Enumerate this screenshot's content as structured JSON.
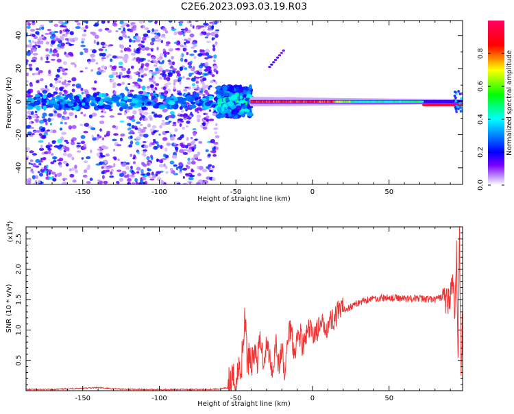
{
  "title": "C2E6.2023.093.03.19.R03",
  "chart_data": [
    {
      "type": "heatmap",
      "xlabel": "Height of straight line (km)",
      "ylabel": "Frequency (Hz)",
      "xlim": [
        -187,
        98
      ],
      "ylim": [
        -50,
        49
      ],
      "xticks": [
        -150,
        -100,
        -50,
        0,
        50
      ],
      "yticks": [
        -40,
        -20,
        0,
        20,
        40
      ],
      "colorbar": {
        "label": "Normalized spectral amplitude",
        "range": [
          0,
          1
        ],
        "ticks": [
          "0.0",
          "0.2",
          "0.4",
          "0.6",
          "0.8"
        ],
        "colors": [
          "#ffffff",
          "#7a00ff",
          "#0000ff",
          "#00ffff",
          "#00ff00",
          "#ffff00",
          "#ff0000",
          "#ff0060"
        ]
      },
      "description_regions": [
        {
          "x_range": [
            -187,
            -62
          ],
          "pattern": "broadband scatter",
          "peak_amplitude": 0.45
        },
        {
          "x_range": [
            -62,
            -40
          ],
          "pattern": "strong band around 0 Hz",
          "peak_amplitude": 0.45
        },
        {
          "x_range": [
            -40,
            98
          ],
          "pattern": "narrow line at ~0 Hz",
          "peak_amplitude": 0.95
        }
      ]
    },
    {
      "type": "line",
      "xlabel": "Height of straight line (km)",
      "ylabel": "SNR (10 * v/v)",
      "yscale_label": "(x10",
      "yscale_exp": "4",
      "yscale_close": ")",
      "xlim": [
        -187,
        98
      ],
      "ylim": [
        0,
        2.7
      ],
      "xticks": [
        -150,
        -100,
        -50,
        0,
        50
      ],
      "yticks": [
        0.5,
        1.0,
        1.5,
        2.0,
        2.5
      ],
      "color": "#ee3333",
      "series": [
        {
          "x": [
            -187,
            -170,
            -150,
            -140,
            -130,
            -110,
            -90,
            -70,
            -60,
            -55,
            -52,
            -50,
            -48,
            -46,
            -45,
            -44,
            -43,
            -42,
            -41,
            -40,
            -38,
            -36,
            -34,
            -32,
            -30,
            -28,
            -26,
            -24,
            -22,
            -20,
            -18,
            -16,
            -14,
            -12,
            -10,
            -8,
            -6,
            -4,
            -2,
            0,
            3,
            6,
            10,
            14,
            18,
            22,
            26,
            30,
            35,
            40,
            50,
            60,
            70,
            80,
            85,
            88,
            90,
            92,
            93,
            94,
            95,
            96,
            97,
            98
          ],
          "values": [
            0.02,
            0.02,
            0.04,
            0.05,
            0.03,
            0.02,
            0.02,
            0.02,
            0.03,
            0.05,
            0.1,
            0.18,
            0.35,
            0.5,
            0.8,
            1.35,
            0.6,
            0.55,
            0.7,
            0.45,
            0.65,
            0.5,
            0.85,
            0.5,
            0.75,
            0.6,
            0.3,
            0.85,
            0.4,
            0.7,
            0.2,
            0.95,
            1.05,
            0.65,
            0.85,
            0.95,
            0.7,
            0.9,
            1.0,
            0.95,
            1.0,
            1.05,
            1.1,
            1.2,
            1.3,
            1.35,
            1.4,
            1.45,
            1.5,
            1.52,
            1.53,
            1.52,
            1.52,
            1.5,
            1.55,
            1.45,
            1.6,
            1.75,
            1.2,
            2.3,
            0.5,
            2.65,
            0.15,
            1.5
          ]
        }
      ]
    }
  ]
}
